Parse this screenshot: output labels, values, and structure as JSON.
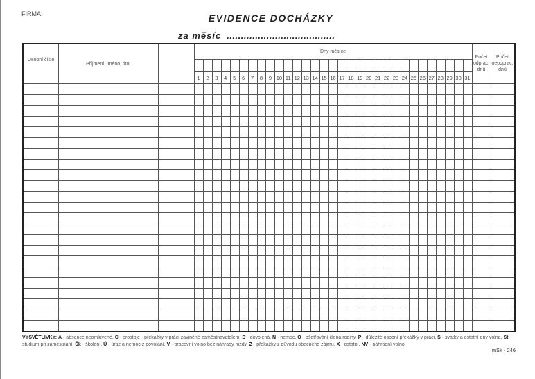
{
  "header": {
    "firma_label": "FIRMA:",
    "title": "EVIDENCE DOCHÁZKY",
    "month_label": "za měsíc",
    "month_value": "......................................"
  },
  "table": {
    "col_personal_number": "Osobní číslo",
    "col_name": "Příjmení, jméno, titul",
    "col_blank": "",
    "col_days": "Dny měsíce",
    "days": [
      "1",
      "2",
      "3",
      "4",
      "5",
      "6",
      "7",
      "8",
      "9",
      "10",
      "11",
      "12",
      "13",
      "14",
      "15",
      "16",
      "17",
      "18",
      "19",
      "20",
      "21",
      "22",
      "23",
      "24",
      "25",
      "26",
      "27",
      "28",
      "29",
      "30",
      "31"
    ],
    "col_worked": "Počet odprac. dnů",
    "col_not_worked": "Počet neodprac. dnů",
    "row_count": 23
  },
  "legend": {
    "label": "VYSVĚTLIVKY:",
    "items": [
      {
        "code": "A",
        "text": "absence neomluvené,"
      },
      {
        "code": "C",
        "text": "prostoje - překážky v práci zaviněné zaměstnavatelem,"
      },
      {
        "code": "D",
        "text": "dovolená,"
      },
      {
        "code": "N",
        "text": "nemoc,"
      },
      {
        "code": "O",
        "text": "ošetřování člena rodiny,"
      },
      {
        "code": "P",
        "text": "důležité osobní překážky v práci,"
      },
      {
        "code": "S",
        "text": "svátky a ostatní dny volna,"
      },
      {
        "code": "St",
        "text": "studium při zaměstnání,"
      },
      {
        "code": "Šk",
        "text": "školení,"
      },
      {
        "code": "Ú",
        "text": "úraz a nemoc z povolání,"
      },
      {
        "code": "V",
        "text": "pracovní volno bez náhrady mzdy,"
      },
      {
        "code": "Z",
        "text": "překážky z důvodu obecného zájmu,"
      },
      {
        "code": "X",
        "text": "ostatní,"
      },
      {
        "code": "NV",
        "text": "náhradní volno"
      }
    ]
  },
  "form_code": "mSk - 246"
}
